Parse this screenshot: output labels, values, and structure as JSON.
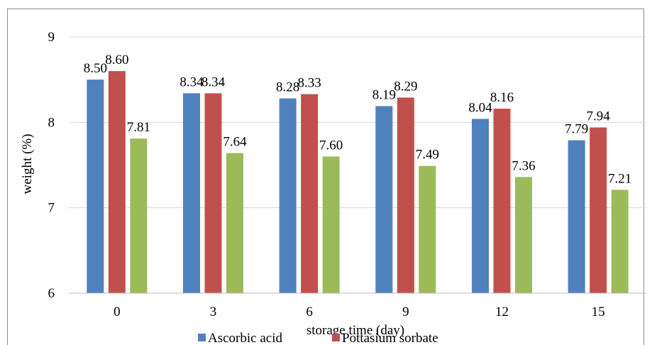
{
  "chart_data": {
    "type": "bar",
    "title": "",
    "xlabel": "storage time (day)",
    "ylabel": "weight (%)",
    "ylim": [
      6,
      9
    ],
    "yticks": [
      "6",
      "7",
      "8",
      "9"
    ],
    "grid": true,
    "legend_position": "bottom",
    "categories": [
      "0",
      "3",
      "6",
      "9",
      "12",
      "15"
    ],
    "series": [
      {
        "name": "Ascorbic acid",
        "color": "#4f81bd",
        "values": [
          8.5,
          8.34,
          8.28,
          8.19,
          8.04,
          7.79
        ],
        "labels": [
          "8.50",
          "8.34",
          "8.28",
          "8.19",
          "8.04",
          "7.79"
        ]
      },
      {
        "name": "Pottasium sorbate",
        "color": "#c0504d",
        "values": [
          8.6,
          8.34,
          8.33,
          8.29,
          8.16,
          7.94
        ],
        "labels": [
          "8.60",
          "8.34",
          "8.33",
          "8.29",
          "8.16",
          "7.94"
        ]
      },
      {
        "name": "",
        "color": "#9bbb59",
        "values": [
          7.81,
          7.64,
          7.6,
          7.49,
          7.36,
          7.21
        ],
        "labels": [
          "7.81",
          "7.64",
          "7.60",
          "7.49",
          "7.36",
          "7.21"
        ]
      }
    ]
  }
}
